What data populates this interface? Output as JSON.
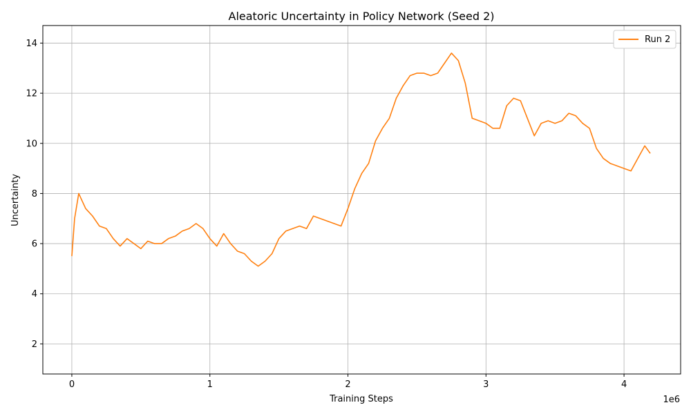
{
  "chart_data": {
    "type": "line",
    "title": "Aleatoric Uncertainty in Policy Network (Seed 2)",
    "xlabel": "Training Steps",
    "ylabel": "Uncertainty",
    "x_offset_label": "1e6",
    "xlim": [
      -210000,
      4410000
    ],
    "ylim": [
      0.8,
      14.7
    ],
    "x_ticks": [
      0,
      1000000,
      2000000,
      3000000,
      4000000
    ],
    "x_tick_labels": [
      "0",
      "1",
      "2",
      "3",
      "4"
    ],
    "y_ticks": [
      2,
      4,
      6,
      8,
      10,
      12,
      14
    ],
    "y_tick_labels": [
      "2",
      "4",
      "6",
      "8",
      "10",
      "12",
      "14"
    ],
    "grid": true,
    "legend_position": "top-right",
    "series": [
      {
        "name": "Run 2",
        "color": "#ff7f0e",
        "x": [
          0,
          20000,
          50000,
          100000,
          150000,
          200000,
          250000,
          300000,
          350000,
          400000,
          450000,
          500000,
          550000,
          600000,
          650000,
          700000,
          750000,
          800000,
          850000,
          900000,
          950000,
          1000000,
          1050000,
          1100000,
          1150000,
          1200000,
          1250000,
          1300000,
          1350000,
          1400000,
          1450000,
          1500000,
          1550000,
          1600000,
          1650000,
          1700000,
          1750000,
          1800000,
          1850000,
          1900000,
          1950000,
          2000000,
          2050000,
          2100000,
          2150000,
          2200000,
          2250000,
          2300000,
          2350000,
          2400000,
          2450000,
          2500000,
          2550000,
          2600000,
          2650000,
          2700000,
          2750000,
          2800000,
          2850000,
          2900000,
          2950000,
          3000000,
          3050000,
          3100000,
          3150000,
          3200000,
          3250000,
          3300000,
          3350000,
          3400000,
          3450000,
          3500000,
          3550000,
          3600000,
          3650000,
          3700000,
          3750000,
          3800000,
          3850000,
          3900000,
          3950000,
          4000000,
          4050000,
          4100000,
          4150000,
          4190000
        ],
        "values": [
          5.5,
          7.0,
          8.0,
          7.4,
          7.1,
          6.7,
          6.6,
          6.2,
          5.9,
          6.2,
          6.0,
          5.8,
          6.1,
          6.0,
          6.0,
          6.2,
          6.3,
          6.5,
          6.6,
          6.8,
          6.6,
          6.2,
          5.9,
          6.4,
          6.0,
          5.7,
          5.6,
          5.3,
          5.1,
          5.3,
          5.6,
          6.2,
          6.5,
          6.6,
          6.7,
          6.6,
          7.1,
          7.0,
          6.9,
          6.8,
          6.7,
          7.4,
          8.2,
          8.8,
          9.2,
          10.1,
          10.6,
          11.0,
          11.8,
          12.3,
          12.7,
          12.8,
          12.8,
          12.7,
          12.8,
          13.2,
          13.6,
          13.3,
          12.4,
          11.0,
          10.9,
          10.8,
          10.6,
          10.6,
          11.5,
          11.8,
          11.7,
          11.0,
          10.3,
          10.8,
          10.9,
          10.8,
          10.9,
          11.2,
          11.1,
          10.8,
          10.6,
          9.8,
          9.4,
          9.2,
          9.1,
          9.0,
          8.9,
          9.4,
          9.9,
          9.6
        ]
      }
    ]
  }
}
